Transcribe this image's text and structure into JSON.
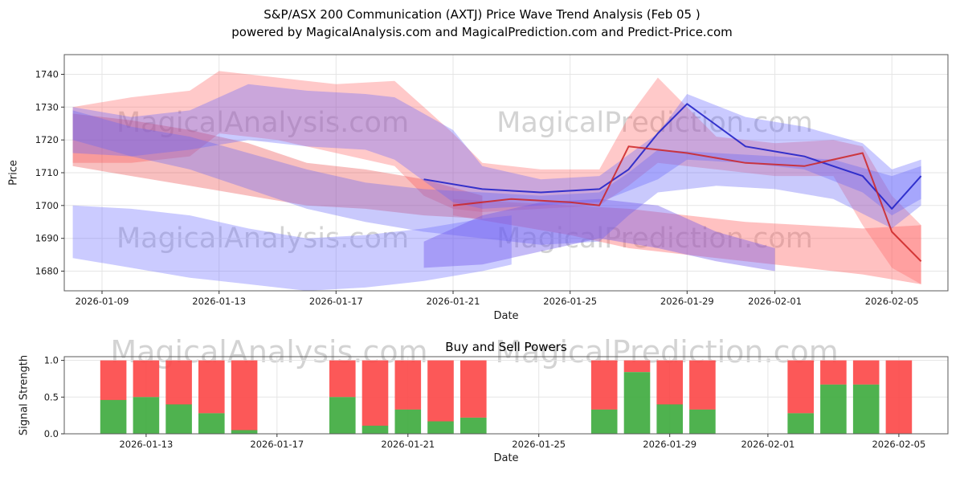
{
  "title": {
    "line1": "S&P/ASX 200 Communication (AXTJ) Price Wave Trend Analysis (Feb 05 )",
    "line2": "powered by MagicalAnalysis.com and MagicalPrediction.com and Predict-Price.com"
  },
  "watermarks": {
    "analysis": "MagicalAnalysis.com",
    "prediction": "MagicalPrediction.com"
  },
  "chart_data": [
    {
      "type": "area",
      "name": "price-wave-trend",
      "xlabel": "Date",
      "ylabel": "Price",
      "x_domain": [
        "2026-01-07T17:00:00Z",
        "2026-02-06T22:00:00Z"
      ],
      "y_domain": [
        1674,
        1746
      ],
      "yticks": [
        1680,
        1690,
        1700,
        1710,
        1720,
        1730,
        1740
      ],
      "xticks": [
        "2026-01-09",
        "2026-01-13",
        "2026-01-17",
        "2026-01-21",
        "2026-01-25",
        "2026-01-29",
        "2026-02-01",
        "2026-02-05"
      ],
      "grid": true,
      "legend": "none",
      "bands": [
        {
          "name": "red-upper",
          "color": "rgba(255,90,90,0.33)",
          "x": [
            "2026-01-08",
            "2026-01-10",
            "2026-01-12",
            "2026-01-13",
            "2026-01-15",
            "2026-01-17",
            "2026-01-19",
            "2026-01-20",
            "2026-01-21",
            "2026-01-22",
            "2026-01-24",
            "2026-01-26",
            "2026-01-27",
            "2026-01-28",
            "2026-01-30",
            "2026-02-01",
            "2026-02-03",
            "2026-02-04",
            "2026-02-05",
            "2026-02-06"
          ],
          "upper": [
            1730,
            1733,
            1735,
            1741,
            1739,
            1737,
            1738,
            1730,
            1722,
            1713,
            1711,
            1711,
            1727,
            1739,
            1721,
            1719,
            1720,
            1718,
            1703,
            1694
          ],
          "lower": [
            1713,
            1713,
            1715,
            1722,
            1720,
            1716,
            1712,
            1703,
            1699,
            1698,
            1699,
            1700,
            1706,
            1713,
            1711,
            1709,
            1709,
            1694,
            1681,
            1676
          ]
        },
        {
          "name": "red-mid-left",
          "color": "rgba(235,60,60,0.33)",
          "x": [
            "2026-01-08",
            "2026-01-10",
            "2026-01-12",
            "2026-01-14",
            "2026-01-16",
            "2026-01-18",
            "2026-01-20",
            "2026-01-22"
          ],
          "upper": [
            1728,
            1726,
            1723,
            1719,
            1713,
            1711,
            1708,
            1703
          ],
          "lower": [
            1712,
            1709,
            1706,
            1703,
            1700,
            1699,
            1697,
            1696
          ]
        },
        {
          "name": "red-lower-right",
          "color": "rgba(255,100,100,0.40)",
          "x": [
            "2026-01-21",
            "2026-01-23",
            "2026-01-25",
            "2026-01-27",
            "2026-01-29",
            "2026-01-31",
            "2026-02-02",
            "2026-02-04",
            "2026-02-06"
          ],
          "upper": [
            1702,
            1701,
            1700,
            1699,
            1697,
            1695,
            1694,
            1693,
            1694
          ],
          "lower": [
            1697,
            1694,
            1691,
            1687,
            1685,
            1683,
            1681,
            1679,
            1676
          ]
        },
        {
          "name": "blue-upper",
          "color": "rgba(95,95,255,0.33)",
          "x": [
            "2026-01-08",
            "2026-01-10",
            "2026-01-12",
            "2026-01-14",
            "2026-01-16",
            "2026-01-18",
            "2026-01-19",
            "2026-01-21",
            "2026-01-22",
            "2026-01-24",
            "2026-01-26",
            "2026-01-28",
            "2026-01-29",
            "2026-01-31",
            "2026-02-02",
            "2026-02-04",
            "2026-02-05",
            "2026-02-06"
          ],
          "upper": [
            1730,
            1727,
            1729,
            1737,
            1735,
            1734,
            1733,
            1723,
            1712,
            1708,
            1709,
            1722,
            1734,
            1727,
            1724,
            1719,
            1711,
            1714
          ],
          "lower": [
            1716,
            1715,
            1717,
            1720,
            1718,
            1717,
            1714,
            1701,
            1699,
            1700,
            1701,
            1708,
            1714,
            1713,
            1711,
            1704,
            1697,
            1702
          ]
        },
        {
          "name": "blue-mid",
          "color": "rgba(100,100,245,0.35)",
          "x": [
            "2026-01-08",
            "2026-01-10",
            "2026-01-12",
            "2026-01-14",
            "2026-01-16",
            "2026-01-18",
            "2026-01-20",
            "2026-01-22",
            "2026-01-24",
            "2026-01-26",
            "2026-01-27",
            "2026-01-28",
            "2026-01-30",
            "2026-02-01",
            "2026-02-03",
            "2026-02-05",
            "2026-02-06"
          ],
          "upper": [
            1729,
            1724,
            1721,
            1716,
            1711,
            1707,
            1705,
            1704,
            1703,
            1704,
            1710,
            1717,
            1716,
            1715,
            1714,
            1709,
            1712
          ],
          "lower": [
            1720,
            1715,
            1711,
            1705,
            1699,
            1695,
            1692,
            1690,
            1688,
            1689,
            1697,
            1704,
            1706,
            1705,
            1702,
            1693,
            1700
          ]
        },
        {
          "name": "blue-lower-left",
          "color": "rgba(105,105,255,0.35)",
          "x": [
            "2026-01-08",
            "2026-01-10",
            "2026-01-12",
            "2026-01-14",
            "2026-01-16",
            "2026-01-18",
            "2026-01-20",
            "2026-01-22",
            "2026-01-23"
          ],
          "upper": [
            1700,
            1699,
            1697,
            1693,
            1690,
            1691,
            1693,
            1696,
            1697
          ],
          "lower": [
            1684,
            1681,
            1678,
            1676,
            1674,
            1675,
            1677,
            1680,
            1682
          ]
        },
        {
          "name": "purple-mid",
          "color": "rgba(110,85,235,0.40)",
          "x": [
            "2026-01-20",
            "2026-01-22",
            "2026-01-24",
            "2026-01-26",
            "2026-01-28",
            "2026-01-30",
            "2026-02-01"
          ],
          "upper": [
            1689,
            1697,
            1701,
            1702,
            1700,
            1692,
            1687
          ],
          "lower": [
            1681,
            1682,
            1686,
            1690,
            1687,
            1683,
            1680
          ]
        }
      ],
      "lines": [
        {
          "name": "blue-forecast",
          "color": "rgba(35,35,200,0.9)",
          "width": 2,
          "x": [
            "2026-01-20",
            "2026-01-22",
            "2026-01-24",
            "2026-01-26",
            "2026-01-27",
            "2026-01-28",
            "2026-01-29",
            "2026-01-31",
            "2026-02-02",
            "2026-02-04",
            "2026-02-05",
            "2026-02-06"
          ],
          "y": [
            1708,
            1705,
            1704,
            1705,
            1711,
            1722,
            1731,
            1718,
            1715,
            1709,
            1699,
            1709
          ]
        },
        {
          "name": "red-forecast",
          "color": "rgba(205,35,35,0.85)",
          "width": 2,
          "x": [
            "2026-01-21",
            "2026-01-23",
            "2026-01-25",
            "2026-01-26",
            "2026-01-27",
            "2026-01-29",
            "2026-01-31",
            "2026-02-02",
            "2026-02-04",
            "2026-02-05",
            "2026-02-06"
          ],
          "y": [
            1700,
            1702,
            1701,
            1700,
            1718,
            1716,
            1713,
            1712,
            1716,
            1692,
            1683
          ]
        }
      ]
    },
    {
      "type": "bar",
      "stacked": true,
      "name": "buy-sell-powers",
      "title": "Buy and Sell Powers",
      "xlabel": "Date",
      "ylabel": "Signal Strength",
      "x_domain": [
        "2026-01-10T12:00:00Z",
        "2026-02-06T12:00:00Z"
      ],
      "y_domain": [
        0,
        1.05
      ],
      "yticks": [
        0,
        0.5,
        1
      ],
      "ytick_labels": [
        "0.0",
        "0.5",
        "1.0"
      ],
      "xticks": [
        "2026-01-13",
        "2026-01-17",
        "2026-01-21",
        "2026-01-25",
        "2026-01-29",
        "2026-02-01",
        "2026-02-05"
      ],
      "grid": true,
      "bar_width_days": 0.8,
      "colors": {
        "buy": "rgba(60,170,60,0.9)",
        "sell": "rgba(252,70,70,0.9)"
      },
      "bars": [
        {
          "date": "2026-01-12",
          "buy": 0.46,
          "sell": 0.54
        },
        {
          "date": "2026-01-13",
          "buy": 0.5,
          "sell": 0.5
        },
        {
          "date": "2026-01-14",
          "buy": 0.4,
          "sell": 0.6
        },
        {
          "date": "2026-01-15",
          "buy": 0.28,
          "sell": 0.72
        },
        {
          "date": "2026-01-16",
          "buy": 0.05,
          "sell": 0.95
        },
        {
          "date": "2026-01-19",
          "buy": 0.5,
          "sell": 0.5
        },
        {
          "date": "2026-01-20",
          "buy": 0.11,
          "sell": 0.89
        },
        {
          "date": "2026-01-21",
          "buy": 0.33,
          "sell": 0.67
        },
        {
          "date": "2026-01-22",
          "buy": 0.17,
          "sell": 0.83
        },
        {
          "date": "2026-01-23",
          "buy": 0.22,
          "sell": 0.78
        },
        {
          "date": "2026-01-27",
          "buy": 0.33,
          "sell": 0.67
        },
        {
          "date": "2026-01-28",
          "buy": 0.84,
          "sell": 0.16
        },
        {
          "date": "2026-01-29",
          "buy": 0.4,
          "sell": 0.6
        },
        {
          "date": "2026-01-30",
          "buy": 0.33,
          "sell": 0.67
        },
        {
          "date": "2026-02-02",
          "buy": 0.28,
          "sell": 0.72
        },
        {
          "date": "2026-02-03",
          "buy": 0.67,
          "sell": 0.33
        },
        {
          "date": "2026-02-04",
          "buy": 0.67,
          "sell": 0.33
        },
        {
          "date": "2026-02-05",
          "buy": 0.0,
          "sell": 1.0
        }
      ]
    }
  ]
}
